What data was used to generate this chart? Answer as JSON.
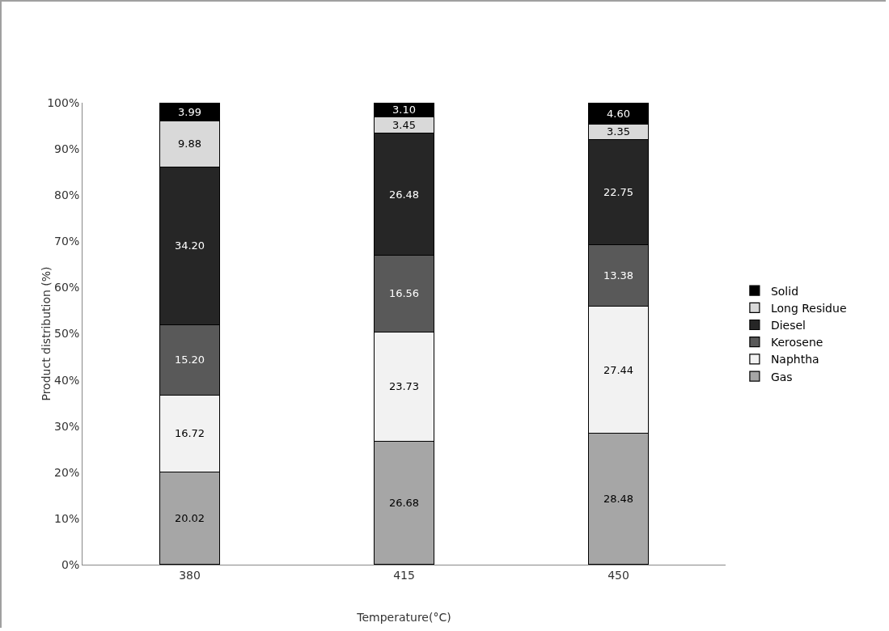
{
  "chart_data": {
    "type": "bar",
    "stacked": true,
    "xlabel": "Temperature(°C)",
    "ylabel": "Product distribution (%)",
    "categories": [
      "380",
      "415",
      "450"
    ],
    "series": [
      {
        "name": "Gas",
        "color": "#a6a6a6",
        "values": [
          20.02,
          26.68,
          28.48
        ],
        "value_labels": [
          "20.02",
          "26.68",
          "28.48"
        ]
      },
      {
        "name": "Naphtha",
        "color": "#f2f2f2",
        "values": [
          16.72,
          23.73,
          27.44
        ],
        "value_labels": [
          "16.72",
          "23.73",
          "27.44"
        ]
      },
      {
        "name": "Kerosene",
        "color": "#595959",
        "values": [
          15.2,
          16.56,
          13.38
        ],
        "value_labels": [
          "15.20",
          "16.56",
          "13.38"
        ]
      },
      {
        "name": "Diesel",
        "color": "#262626",
        "values": [
          34.2,
          26.48,
          22.75
        ],
        "value_labels": [
          "34.20",
          "26.48",
          "22.75"
        ]
      },
      {
        "name": "Long Residue",
        "color": "#d9d9d9",
        "values": [
          9.88,
          3.45,
          3.35
        ],
        "value_labels": [
          "9.88",
          "3.45",
          "3.35"
        ]
      },
      {
        "name": "Solid",
        "color": "#000000",
        "values": [
          3.99,
          3.1,
          4.6
        ],
        "value_labels": [
          "3.99",
          "3.10",
          "4.60"
        ]
      }
    ],
    "ylim": [
      0,
      100.01
    ],
    "yticks": [
      {
        "value": 0,
        "label": "0%"
      },
      {
        "value": 10,
        "label": "10%"
      },
      {
        "value": 20,
        "label": "20%"
      },
      {
        "value": 30,
        "label": "30%"
      },
      {
        "value": 40,
        "label": "40%"
      },
      {
        "value": 50,
        "label": "50%"
      },
      {
        "value": 60,
        "label": "60%"
      },
      {
        "value": 70,
        "label": "70%"
      },
      {
        "value": 80,
        "label": "80%"
      },
      {
        "value": 90,
        "label": "90%"
      },
      {
        "value": 100,
        "label": "100%"
      }
    ],
    "grid": false,
    "legend": "right"
  }
}
